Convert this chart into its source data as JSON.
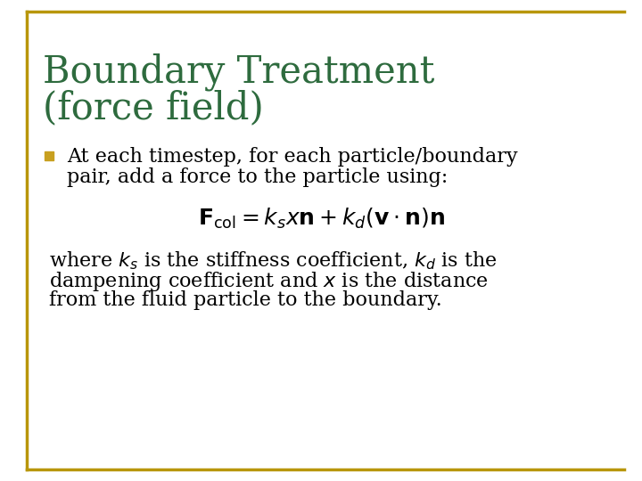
{
  "title_line1": "Boundary Treatment",
  "title_line2": "(force field)",
  "title_color": "#2E6B3E",
  "bullet_text_line1": "At each timestep, for each particle/boundary",
  "bullet_text_line2": "pair, add a force to the particle using:",
  "formula": "$\\mathbf{F}_{\\mathrm{col}} = k_s x\\mathbf{n} + k_d (\\mathbf{v} \\cdot \\mathbf{n})\\mathbf{n}$",
  "description_line1": "where $k_s$ is the stiffness coefficient, $k_d$ is the",
  "description_line2": "dampening coefficient and $x$ is the distance",
  "description_line3": "from the fluid particle to the boundary.",
  "bg_color": "#FFFFFF",
  "text_color": "#000000",
  "bullet_color": "#C8A020",
  "border_color": "#B8960B",
  "title_fontsize": 30,
  "body_fontsize": 16,
  "formula_fontsize": 18
}
